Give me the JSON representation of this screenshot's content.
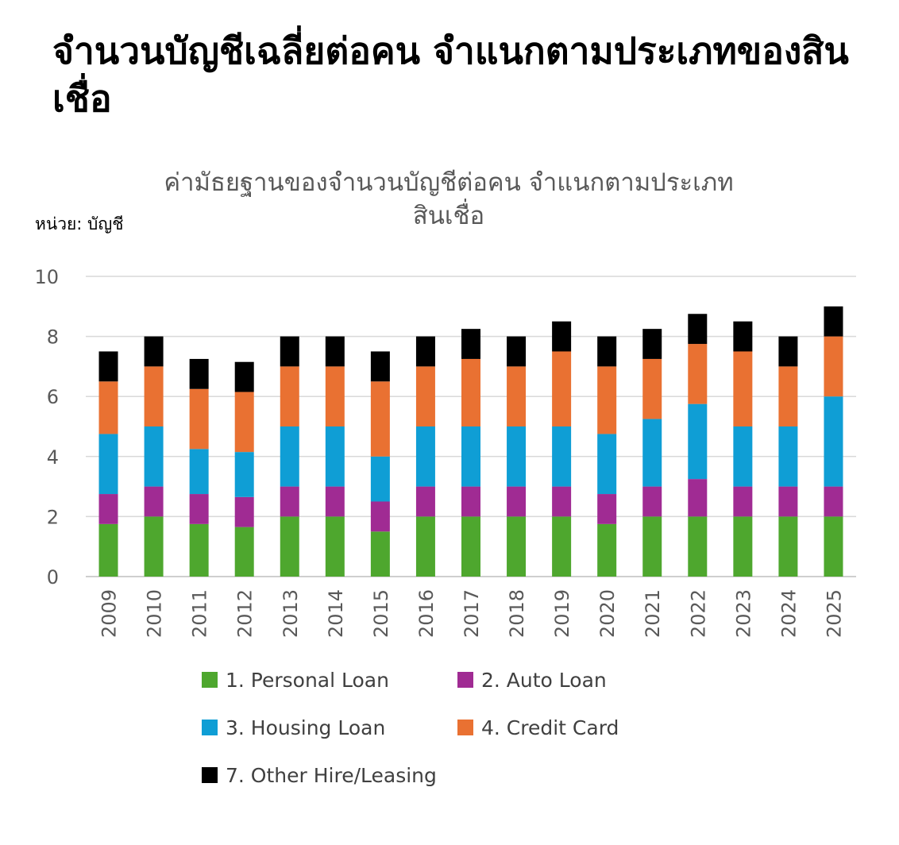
{
  "page": {
    "headline": "จำนวนบัญชีเฉลี่ยต่อคน จำแนกตามประเภทของสินเชื่อ"
  },
  "chart_data": {
    "type": "bar",
    "stacked": true,
    "title": "ค่ามัธยฐานของจำนวนบัญชีต่อคน จำแนกตามประเภทสินเชื่อ",
    "title_lines": [
      "ค่ามัธยฐานของจำนวนบัญชีต่อคน จำแนกตามประเภท",
      "สินเชื่อ"
    ],
    "unit_label": "หน่วย: บัญชี",
    "categories": [
      "2009",
      "2010",
      "2011",
      "2012",
      "2013",
      "2014",
      "2015",
      "2016",
      "2017",
      "2018",
      "2019",
      "2020",
      "2021",
      "2022",
      "2023",
      "2024",
      "2025"
    ],
    "ylim": [
      0,
      10
    ],
    "yticks": [
      0,
      2,
      4,
      6,
      8,
      10
    ],
    "grid": true,
    "legend_position": "bottom",
    "series": [
      {
        "name": "1. Personal Loan",
        "color": "#4EA72E",
        "values": [
          1.75,
          2,
          1.75,
          1.65,
          2,
          2,
          1.5,
          2,
          2,
          2,
          2,
          1.75,
          2,
          2,
          2,
          2,
          2
        ]
      },
      {
        "name": "2. Auto Loan",
        "color": "#A02B93",
        "values": [
          1,
          1,
          1,
          1,
          1,
          1,
          1,
          1,
          1,
          1,
          1,
          1,
          1,
          1.25,
          1,
          1,
          1
        ]
      },
      {
        "name": "3. Housing Loan",
        "color": "#0F9ED5",
        "values": [
          2,
          2,
          1.5,
          1.5,
          2,
          2,
          1.5,
          2,
          2,
          2,
          2,
          2,
          2.25,
          2.5,
          2,
          2,
          3
        ]
      },
      {
        "name": "4. Credit Card",
        "color": "#E97132",
        "values": [
          1.75,
          2,
          2,
          2,
          2,
          2,
          2.5,
          2,
          2.25,
          2,
          2.5,
          2.25,
          2,
          2,
          2.5,
          2,
          2
        ]
      },
      {
        "name": "7. Other Hire/Leasing",
        "color": "#000000",
        "values": [
          1,
          1,
          1,
          1,
          1,
          1,
          1,
          1,
          1,
          1,
          1,
          1,
          1,
          1,
          1,
          1,
          1
        ]
      }
    ]
  }
}
